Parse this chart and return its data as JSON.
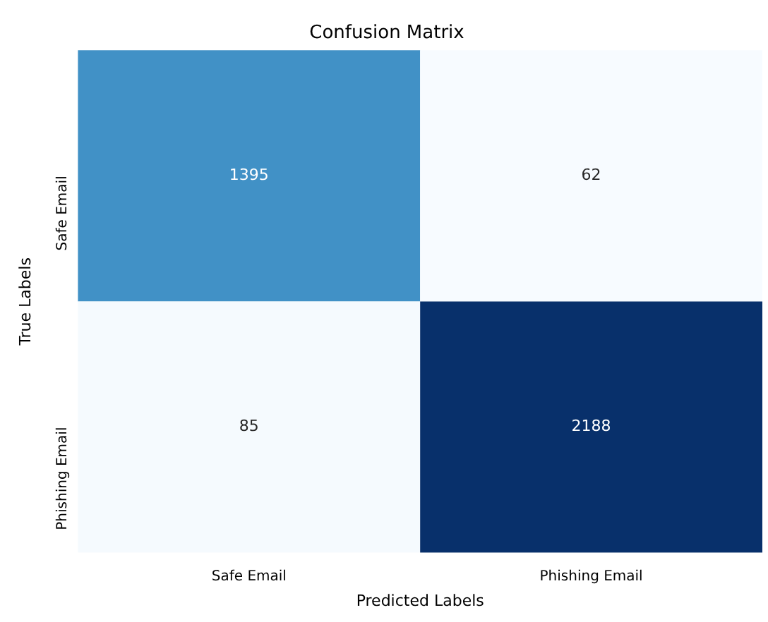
{
  "chart_data": {
    "type": "heatmap",
    "title": "Confusion Matrix",
    "xlabel": "Predicted Labels",
    "ylabel": "True Labels",
    "categories": [
      "Safe Email",
      "Phishing Email"
    ],
    "y_categories": [
      "Safe Email",
      "Phishing Email"
    ],
    "data_labels": true,
    "cells": [
      [
        1395,
        62
      ],
      [
        85,
        2188
      ]
    ]
  }
}
